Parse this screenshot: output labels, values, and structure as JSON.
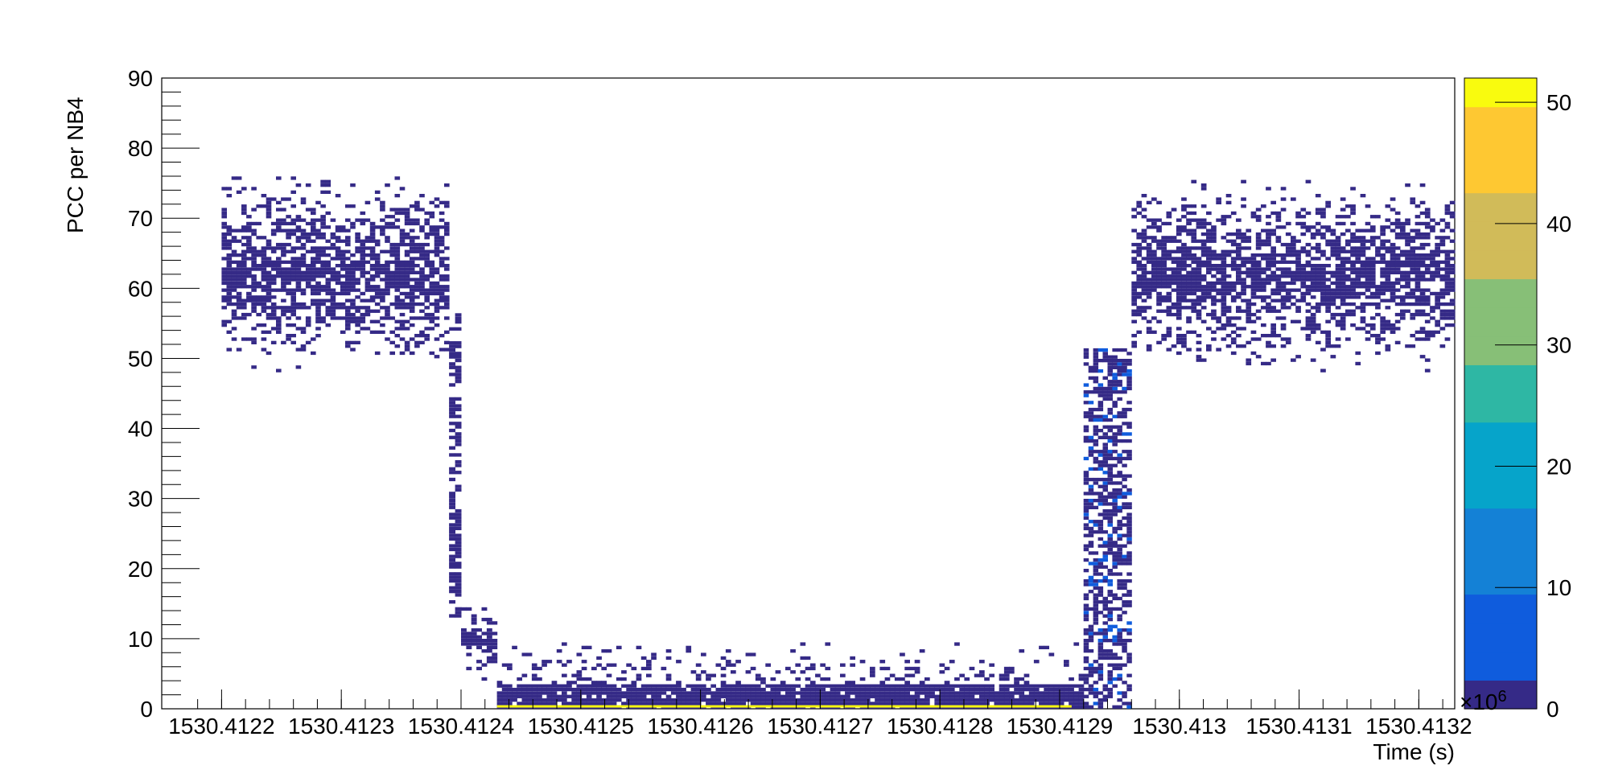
{
  "chart_data": {
    "type": "heatmap",
    "xlabel": "Time (s)",
    "ylabel": "PCC per NB4",
    "xlim": [
      1530.41215,
      1530.41323
    ],
    "ylim": [
      0,
      90
    ],
    "x_tick_labels": [
      "1530.4122",
      "1530.4123",
      "1530.4124",
      "1530.4125",
      "1530.4126",
      "1530.4127",
      "1530.4128",
      "1530.4129",
      "1530.413",
      "1530.4131",
      "1530.4132"
    ],
    "x_ticks": [
      1530.4122,
      1530.4123,
      1530.4124,
      1530.4125,
      1530.4126,
      1530.4127,
      1530.4128,
      1530.4129,
      1530.413,
      1530.4131,
      1530.4132
    ],
    "y_ticks": [
      0,
      10,
      20,
      30,
      40,
      50,
      60,
      70,
      80,
      90
    ],
    "y_tick_labels": [
      "0",
      "10",
      "20",
      "30",
      "40",
      "50",
      "60",
      "70",
      "80",
      "90"
    ],
    "colorbar": {
      "range": [
        0,
        52
      ],
      "ticks": [
        0,
        10,
        20,
        30,
        40,
        50
      ],
      "tick_labels": [
        "0",
        "10",
        "20",
        "30",
        "40",
        "50"
      ],
      "exponent_label": "×10",
      "exponent": "6",
      "palette": [
        "#352a87",
        "#0f5cdd",
        "#1481d6",
        "#06a4ca",
        "#2eb7a4",
        "#87bf77",
        "#d1bb59",
        "#fec832",
        "#f9fb0e"
      ]
    },
    "bands": [
      {
        "x_range": [
          1530.4122,
          1530.41239
        ],
        "y_range": [
          48,
          76
        ],
        "level": 1,
        "description": "high plateau"
      },
      {
        "x_range": [
          1530.41239,
          1530.4124
        ],
        "y_range": [
          13,
          56
        ],
        "level": 1,
        "description": "falling edge"
      },
      {
        "x_range": [
          1530.4124,
          1530.41243
        ],
        "y_range": [
          4,
          15
        ],
        "level": 2,
        "description": "intermediate step"
      },
      {
        "x_range": [
          1530.41243,
          1530.41292
        ],
        "y_range": [
          0,
          10
        ],
        "level": 2,
        "description": "low plateau"
      },
      {
        "x_range": [
          1530.41292,
          1530.41296
        ],
        "y_range": [
          0,
          51
        ],
        "level": 3,
        "description": "rising edge"
      },
      {
        "x_range": [
          1530.41296,
          1530.41323
        ],
        "y_range": [
          48,
          75
        ],
        "level": 1,
        "description": "high plateau"
      }
    ],
    "base_strip": {
      "x_range": [
        1530.41243,
        1530.41291
      ],
      "y_range": [
        0,
        0.4
      ],
      "level": 50
    }
  }
}
